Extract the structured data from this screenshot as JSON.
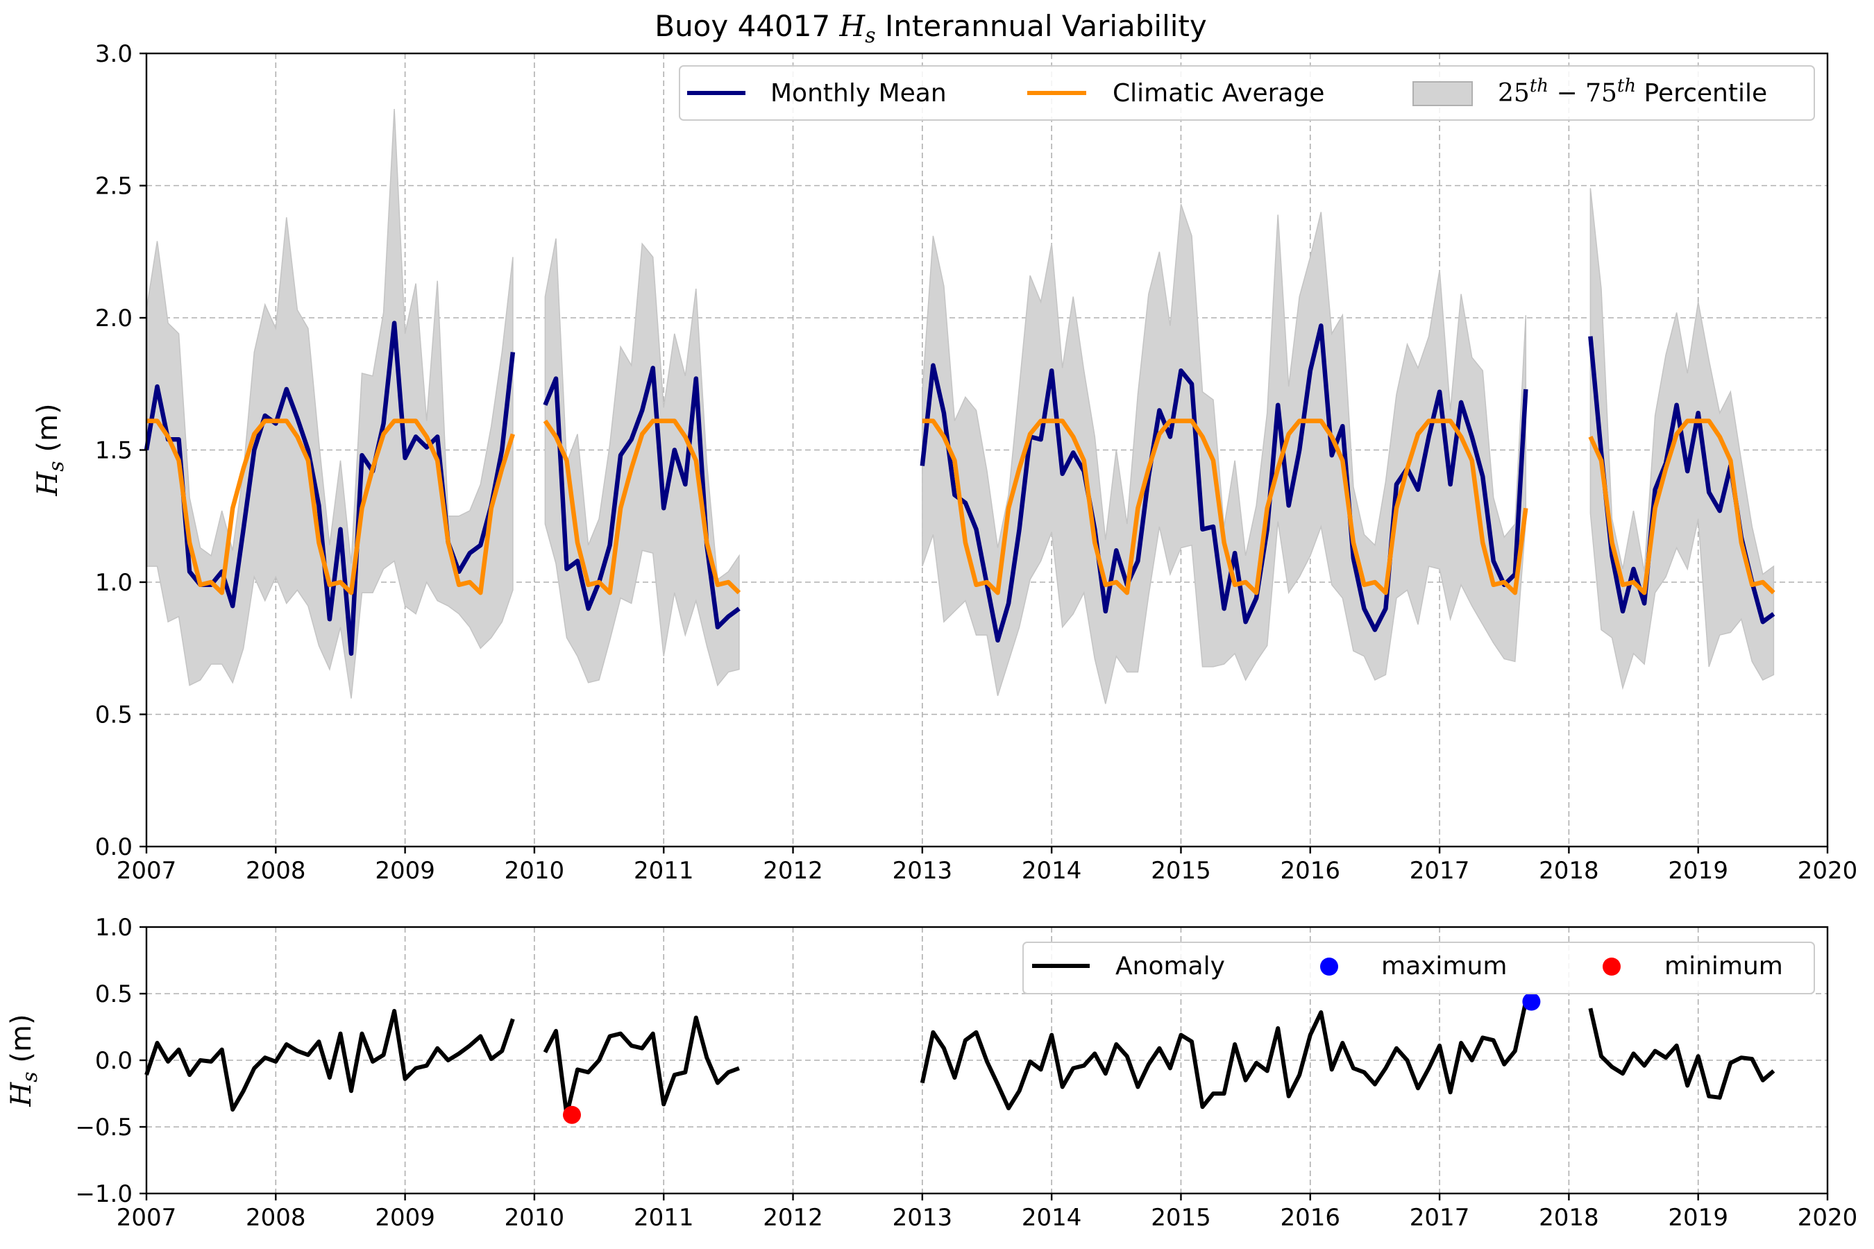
{
  "chart_data": [
    {
      "type": "line",
      "title": "Buoy 44017 H_s Interannual Variability",
      "title_parts": {
        "pre": "Buoy 44017 ",
        "var": "H",
        "sub": "s",
        "post": " Interannual Variability"
      },
      "ylabel_parts": {
        "var": "H",
        "sub": "s",
        "post": " (m)"
      },
      "xlim": [
        2007,
        2020
      ],
      "ylim": [
        0.0,
        3.0
      ],
      "x_ticks": [
        "2007",
        "2008",
        "2009",
        "2010",
        "2011",
        "2012",
        "2013",
        "2014",
        "2015",
        "2016",
        "2017",
        "2018",
        "2019",
        "2020"
      ],
      "y_ticks": [
        "0.0",
        "0.5",
        "1.0",
        "1.5",
        "2.0",
        "2.5",
        "3.0"
      ],
      "grid": true,
      "legend_placement": "top-right",
      "legend": [
        {
          "label": "Monthly Mean",
          "kind": "line",
          "color": "#000080"
        },
        {
          "label": "Climatic Average",
          "kind": "line",
          "color": "#ff8c00"
        },
        {
          "label_parts": {
            "a": "25",
            "a_sup": "th",
            "mid": " − 75",
            "b_sup": "th",
            "post": " Percentile"
          },
          "kind": "patch",
          "color": "#d3d3d3"
        }
      ],
      "climatology": [
        1.61,
        1.61,
        1.55,
        1.46,
        1.15,
        0.99,
        1.0,
        0.96,
        1.28,
        1.43,
        1.56,
        1.61
      ],
      "series": [
        {
          "name": "Monthly Mean",
          "color": "#000080",
          "segments": [
            {
              "start": [
                2007,
                1
              ],
              "values": [
                1.5,
                1.74,
                1.54,
                1.54,
                1.04,
                0.99,
                0.99,
                1.04,
                0.91,
                1.2,
                1.5,
                1.63,
                1.6,
                1.73,
                1.62,
                1.5,
                1.29,
                0.86,
                1.2,
                0.73,
                1.48,
                1.42,
                1.6,
                1.98,
                1.47,
                1.55,
                1.51,
                1.55,
                1.15,
                1.04,
                1.11,
                1.14,
                1.29,
                1.5,
                1.87
              ]
            },
            {
              "start": [
                2010,
                2
              ],
              "values": [
                1.67,
                1.77,
                1.05,
                1.08,
                0.9,
                1.0,
                1.14,
                1.48,
                1.54,
                1.65,
                1.81,
                1.28,
                1.5,
                1.37,
                1.77,
                1.14,
                0.83,
                0.87,
                0.9
              ]
            },
            {
              "start": [
                2013,
                1
              ],
              "values": [
                1.44,
                1.82,
                1.64,
                1.33,
                1.3,
                1.2,
                0.99,
                0.78,
                0.92,
                1.2,
                1.55,
                1.54,
                1.8,
                1.41,
                1.49,
                1.42,
                1.2,
                0.89,
                1.12,
                0.99,
                1.08,
                1.4,
                1.65,
                1.55,
                1.8,
                1.75,
                1.2,
                1.21,
                0.9,
                1.11,
                0.85,
                0.94,
                1.2,
                1.67,
                1.29,
                1.5,
                1.8,
                1.97,
                1.48,
                1.59,
                1.09,
                0.9,
                0.82,
                0.9,
                1.37,
                1.43,
                1.35,
                1.55,
                1.72,
                1.37,
                1.68,
                1.55,
                1.4,
                1.08,
                0.99,
                1.03,
                1.73
              ]
            },
            {
              "start": [
                2018,
                3
              ],
              "values": [
                1.93,
                1.49,
                1.1,
                0.89,
                1.05,
                0.92,
                1.35,
                1.45,
                1.67,
                1.42,
                1.64,
                1.34,
                1.27,
                1.44,
                1.17,
                1.0,
                0.85,
                0.88
              ]
            }
          ]
        },
        {
          "name": "Climatic Average",
          "color": "#ff8c00",
          "segments": [
            {
              "start": [
                2007,
                1
              ],
              "count": 35
            },
            {
              "start": [
                2010,
                2
              ],
              "count": 19
            },
            {
              "start": [
                2013,
                1
              ],
              "count": 57
            },
            {
              "start": [
                2018,
                3
              ],
              "count": 18
            }
          ]
        }
      ],
      "band": {
        "name": "25th−75th Percentile",
        "color": "#d3d3d3",
        "segments": [
          {
            "start": [
              2007,
              1
            ],
            "lower": [
              1.06,
              1.06,
              0.85,
              0.87,
              0.61,
              0.63,
              0.69,
              0.69,
              0.62,
              0.75,
              1.02,
              0.93,
              1.02,
              0.92,
              0.97,
              0.91,
              0.76,
              0.67,
              0.83,
              0.56,
              0.96,
              0.96,
              1.05,
              1.08,
              0.91,
              0.88,
              1.0,
              0.93,
              0.91,
              0.88,
              0.83,
              0.75,
              0.79,
              0.85,
              0.97
            ],
            "upper": [
              2.03,
              2.29,
              1.98,
              1.94,
              1.32,
              1.13,
              1.1,
              1.27,
              1.12,
              1.42,
              1.87,
              2.05,
              1.96,
              2.38,
              2.03,
              1.96,
              1.53,
              1.14,
              1.46,
              1.07,
              1.79,
              1.78,
              2.02,
              2.79,
              1.94,
              2.13,
              1.61,
              2.14,
              1.25,
              1.25,
              1.27,
              1.37,
              1.59,
              1.87,
              2.23
            ]
          },
          {
            "start": [
              2010,
              2
            ],
            "lower": [
              1.22,
              1.07,
              0.79,
              0.72,
              0.62,
              0.63,
              0.78,
              0.94,
              0.92,
              1.12,
              1.11,
              0.72,
              0.96,
              0.8,
              0.93,
              0.76,
              0.61,
              0.66,
              0.67
            ],
            "upper": [
              2.08,
              2.3,
              1.45,
              1.56,
              1.14,
              1.24,
              1.52,
              1.89,
              1.82,
              2.28,
              2.23,
              1.66,
              1.94,
              1.78,
              2.11,
              1.45,
              1.01,
              1.04,
              1.1
            ]
          },
          {
            "start": [
              2013,
              1
            ],
            "lower": [
              1.06,
              1.18,
              0.85,
              0.89,
              0.93,
              0.8,
              0.8,
              0.57,
              0.7,
              0.83,
              1.01,
              1.08,
              1.19,
              0.83,
              0.88,
              0.96,
              0.71,
              0.54,
              0.72,
              0.66,
              0.66,
              0.95,
              1.21,
              1.03,
              1.13,
              1.14,
              0.68,
              0.68,
              0.69,
              0.73,
              0.63,
              0.7,
              0.76,
              1.23,
              0.96,
              1.02,
              1.1,
              1.21,
              0.99,
              0.94,
              0.74,
              0.72,
              0.63,
              0.65,
              0.94,
              0.97,
              0.84,
              1.06,
              1.05,
              0.86,
              0.99,
              0.91,
              0.84,
              0.77,
              0.71,
              0.7,
              1.23
            ],
            "upper": [
              1.72,
              2.31,
              2.12,
              1.61,
              1.7,
              1.65,
              1.42,
              1.13,
              1.33,
              1.74,
              2.16,
              2.06,
              2.28,
              1.81,
              2.08,
              1.8,
              1.55,
              1.16,
              1.5,
              1.22,
              1.71,
              2.09,
              2.25,
              1.97,
              2.43,
              2.31,
              1.72,
              1.69,
              1.21,
              1.46,
              1.1,
              1.29,
              1.64,
              2.39,
              1.74,
              2.08,
              2.23,
              2.4,
              1.94,
              2.01,
              1.36,
              1.18,
              1.14,
              1.38,
              1.71,
              1.9,
              1.81,
              1.93,
              2.18,
              1.65,
              2.09,
              1.85,
              1.8,
              1.32,
              1.17,
              1.22,
              2.01
            ]
          },
          {
            "start": [
              2018,
              3
            ],
            "lower": [
              1.26,
              0.82,
              0.79,
              0.6,
              0.73,
              0.69,
              0.96,
              1.02,
              1.13,
              1.05,
              1.24,
              0.68,
              0.8,
              0.81,
              0.86,
              0.7,
              0.63,
              0.65
            ],
            "upper": [
              2.49,
              2.11,
              1.24,
              1.05,
              1.27,
              1.04,
              1.63,
              1.86,
              2.02,
              1.79,
              2.06,
              1.84,
              1.64,
              1.72,
              1.46,
              1.21,
              1.03,
              1.06
            ]
          }
        ]
      }
    },
    {
      "type": "line",
      "title": "",
      "ylabel_parts": {
        "var": "H",
        "sub": "s",
        "post": " (m)"
      },
      "xlim": [
        2007,
        2020
      ],
      "ylim": [
        -1.0,
        1.0
      ],
      "x_ticks": [
        "2007",
        "2008",
        "2009",
        "2010",
        "2011",
        "2012",
        "2013",
        "2014",
        "2015",
        "2016",
        "2017",
        "2018",
        "2019",
        "2020"
      ],
      "y_ticks": [
        "−1.0",
        "−0.5",
        "0.0",
        "0.5",
        "1.0"
      ],
      "grid": true,
      "legend_placement": "top-right",
      "legend": [
        {
          "label": "Anomaly",
          "kind": "line",
          "color": "#000000"
        },
        {
          "label": "maximum",
          "kind": "dot",
          "color": "#0000ff"
        },
        {
          "label": "minimum",
          "kind": "dot",
          "color": "#ff0000"
        }
      ],
      "series": [
        {
          "name": "Anomaly",
          "color": "#000000",
          "segments": [
            {
              "start": [
                2007,
                1
              ],
              "values": [
                -0.11,
                0.13,
                -0.01,
                0.08,
                -0.11,
                0.0,
                -0.01,
                0.08,
                -0.37,
                -0.23,
                -0.06,
                0.02,
                -0.01,
                0.12,
                0.07,
                0.04,
                0.14,
                -0.13,
                0.2,
                -0.23,
                0.2,
                -0.01,
                0.04,
                0.37,
                -0.14,
                -0.06,
                -0.04,
                0.09,
                0.0,
                0.05,
                0.11,
                0.18,
                0.01,
                0.07,
                0.31
              ]
            },
            {
              "start": [
                2010,
                2
              ],
              "values": [
                0.06,
                0.22,
                -0.41,
                -0.07,
                -0.09,
                0.0,
                0.18,
                0.2,
                0.11,
                0.09,
                0.2,
                -0.33,
                -0.11,
                -0.09,
                0.32,
                0.02,
                -0.17,
                -0.09,
                -0.06
              ]
            },
            {
              "start": [
                2013,
                1
              ],
              "values": [
                -0.17,
                0.21,
                0.09,
                -0.13,
                0.15,
                0.21,
                -0.01,
                -0.18,
                -0.36,
                -0.23,
                -0.01,
                -0.07,
                0.19,
                -0.2,
                -0.06,
                -0.04,
                0.05,
                -0.1,
                0.12,
                0.03,
                -0.2,
                -0.03,
                0.09,
                -0.06,
                0.19,
                0.14,
                -0.35,
                -0.25,
                -0.25,
                0.12,
                -0.15,
                -0.02,
                -0.08,
                0.24,
                -0.27,
                -0.11,
                0.19,
                0.36,
                -0.07,
                0.13,
                -0.06,
                -0.09,
                -0.18,
                -0.06,
                0.09,
                0.0,
                -0.21,
                -0.06,
                0.11,
                -0.24,
                0.13,
                0.0,
                0.17,
                0.15,
                -0.03,
                0.07,
                0.44
              ]
            },
            {
              "start": [
                2018,
                3
              ],
              "values": [
                0.39,
                0.03,
                -0.05,
                -0.1,
                0.05,
                -0.04,
                0.07,
                0.02,
                0.11,
                -0.19,
                0.03,
                -0.27,
                -0.28,
                -0.02,
                0.02,
                0.01,
                -0.15,
                -0.08
              ]
            }
          ]
        }
      ],
      "markers": [
        {
          "name": "maximum",
          "x": 2017.71,
          "y": 0.44,
          "color": "#0000ff"
        },
        {
          "name": "minimum",
          "x": 2010.29,
          "y": -0.41,
          "color": "#ff0000"
        }
      ]
    }
  ]
}
